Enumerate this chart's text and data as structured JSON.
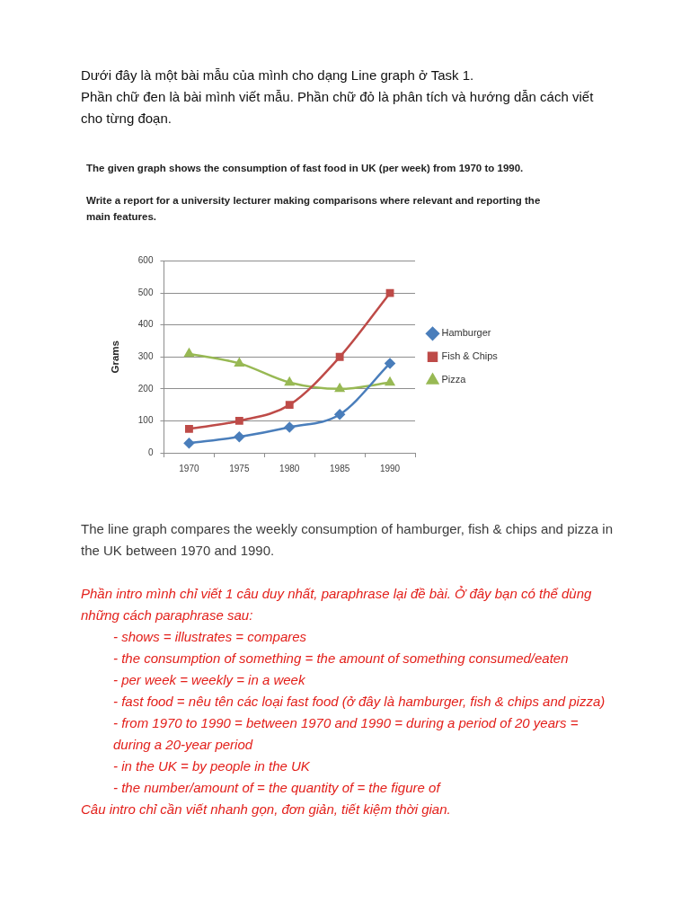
{
  "chart_data": {
    "type": "line",
    "title": "The given graph shows the consumption of fast food in UK (per week) from 1970 to 1990.",
    "subtitle": "Write a report for a university lecturer making comparisons where relevant and reporting the main features.",
    "ylabel": "Grams",
    "categories": [
      "1970",
      "1975",
      "1980",
      "1985",
      "1990"
    ],
    "series": [
      {
        "name": "Hamburger",
        "color": "#4a7ebb",
        "marker": "diamond",
        "values": [
          30,
          50,
          80,
          120,
          280
        ]
      },
      {
        "name": "Fish & Chips",
        "color": "#be4b48",
        "marker": "square",
        "values": [
          75,
          100,
          150,
          300,
          500
        ]
      },
      {
        "name": "Pizza",
        "color": "#98b954",
        "marker": "triangle",
        "values": [
          310,
          280,
          220,
          200,
          220
        ]
      }
    ],
    "ylim": [
      0,
      600
    ],
    "yticks": [
      0,
      100,
      200,
      300,
      400,
      500,
      600
    ],
    "grid": "y",
    "legend": "right",
    "annotations": [
      "Dưới đây là một bài mẫu của mình cho dạng Line graph ở Task 1.",
      "Phần chữ đen là bài mình viết mẫu. Phần chữ đỏ là phân tích và hướng dẫn cách viết cho từng đoạn.",
      "The line graph compares the weekly consumption of hamburger, fish & chips and pizza in the UK between 1970 and 1990.",
      "Phần intro mình chỉ viết 1 câu duy nhất, paraphrase lại đề bài. Ở đây bạn có thể dùng những cách paraphrase sau:",
      "- shows = illustrates = compares",
      "- the consumption of something = the amount of something consumed/eaten",
      "- per week = weekly = in a week",
      "- fast food = nêu tên các loại fast food (ở đây là hamburger, fish & chips and pizza)",
      "- from 1970 to 1990 = between 1970 and 1990 = during a period of 20 years = during a 20-year period",
      "- in the UK = by people in the UK",
      "- the number/amount of = the quantity of = the figure of",
      "Câu intro chỉ cần viết nhanh gọn, đơn giản, tiết kiệm thời gian."
    ]
  }
}
